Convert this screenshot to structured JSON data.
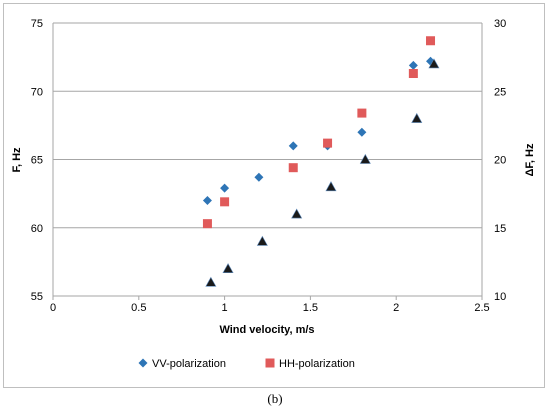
{
  "caption": "(b)",
  "chart_data": {
    "type": "scatter",
    "xlabel": "Wind velocity, m/s",
    "ylabel": "F, Hz",
    "y2label": "ΔF, Hz",
    "xlim": [
      0,
      2.5
    ],
    "ylim": [
      55,
      75
    ],
    "y2lim": [
      10,
      30
    ],
    "xticks": [
      "0",
      "0.5",
      "1",
      "1.5",
      "2",
      "2.5"
    ],
    "yticks": [
      "55",
      "60",
      "65",
      "70",
      "75"
    ],
    "y2ticks": [
      "10",
      "15",
      "20",
      "25",
      "30"
    ],
    "grid": "horizontal",
    "legend_position": "bottom",
    "series": [
      {
        "name": "VV-polarization",
        "axis": "left",
        "marker": "diamond",
        "color": "#2e75b6",
        "x": [
          0.9,
          1.0,
          1.2,
          1.4,
          1.6,
          1.8,
          2.1,
          2.2
        ],
        "y": [
          62.0,
          62.9,
          63.7,
          66.0,
          66.0,
          67.0,
          71.9,
          72.2
        ]
      },
      {
        "name": "HH-polarization",
        "axis": "left",
        "marker": "square",
        "color": "#e05a5a",
        "x": [
          0.9,
          1.0,
          1.4,
          1.6,
          1.8,
          2.1,
          2.2
        ],
        "y": [
          60.3,
          61.9,
          64.4,
          66.2,
          68.4,
          71.3,
          73.7
        ]
      },
      {
        "axis": "right",
        "marker": "triangle",
        "color": "#1a1a1a",
        "x": [
          0.92,
          1.02,
          1.22,
          1.42,
          1.62,
          1.82,
          2.12,
          2.22
        ],
        "y": [
          11.0,
          12.0,
          14.0,
          16.0,
          18.0,
          20.0,
          23.0,
          27.0
        ]
      }
    ]
  }
}
